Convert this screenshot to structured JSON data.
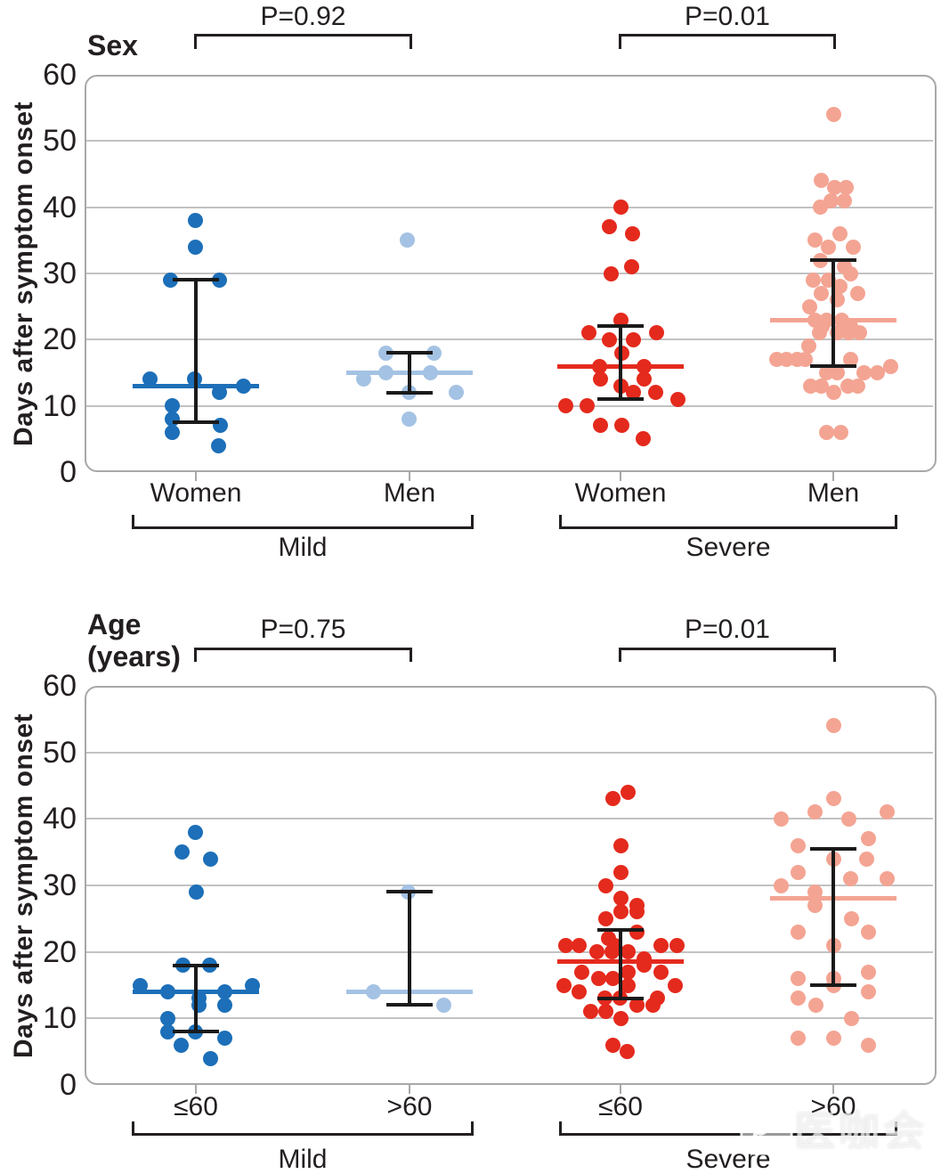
{
  "colors": {
    "dark_blue": "#1c6fb8",
    "light_blue": "#a4c2e3",
    "red": "#e42a1d",
    "salmon": "#f4a493",
    "grid": "#c2c2c2",
    "border": "#a8a8a8",
    "ink": "#231f20"
  },
  "watermark": {
    "brand": "医咖会"
  },
  "chart_data": {
    "type": "scatter",
    "subtype": "beeswarm-with-median-iqr",
    "y_axis": {
      "label": "Days after symptom onset",
      "min": 0,
      "max": 60,
      "ticks": [
        60,
        50,
        40,
        30,
        20,
        10,
        0
      ],
      "grid": true
    },
    "panels": [
      {
        "title": "Sex",
        "comparisons": [
          {
            "label": "P=0.92",
            "from": 0,
            "to": 1
          },
          {
            "label": "P=0.01",
            "from": 2,
            "to": 3
          }
        ],
        "arms": [
          {
            "label": "Mild",
            "groups": [
              0,
              1
            ]
          },
          {
            "label": "Severe",
            "groups": [
              2,
              3
            ]
          }
        ],
        "groups": [
          {
            "label": "Women",
            "arm": "Mild",
            "color_key": "dark_blue",
            "median": 13,
            "iqr": [
              7.5,
              29
            ],
            "points": [
              [
                -1,
                38
              ],
              [
                -1,
                34
              ],
              [
                -29,
                29
              ],
              [
                26,
                29
              ],
              [
                -52,
                14
              ],
              [
                -2,
                14
              ],
              [
                53,
                13
              ],
              [
                26,
                12
              ],
              [
                -27,
                10
              ],
              [
                -27,
                8
              ],
              [
                -27,
                6
              ],
              [
                27,
                7
              ],
              [
                25,
                4
              ]
            ]
          },
          {
            "label": "Men",
            "arm": "Mild",
            "color_key": "light_blue",
            "median": 15,
            "iqr": [
              12,
              18
            ],
            "points": [
              [
                -3,
                35
              ],
              [
                -27,
                18
              ],
              [
                27,
                18
              ],
              [
                -52,
                14
              ],
              [
                -27,
                15
              ],
              [
                23,
                15
              ],
              [
                -1,
                12
              ],
              [
                52,
                12
              ],
              [
                -1,
                8
              ]
            ]
          },
          {
            "label": "Women",
            "arm": "Severe",
            "color_key": "red",
            "median": 16,
            "iqr": [
              11,
              22
            ],
            "points": [
              [
                0,
                40
              ],
              [
                -13,
                37
              ],
              [
                13,
                36
              ],
              [
                -11,
                30
              ],
              [
                12,
                31
              ],
              [
                0,
                23
              ],
              [
                -36,
                21
              ],
              [
                40,
                21
              ],
              [
                -13,
                20
              ],
              [
                14,
                20
              ],
              [
                1,
                18
              ],
              [
                -24,
                16
              ],
              [
                26,
                16
              ],
              [
                -23,
                14
              ],
              [
                26,
                14
              ],
              [
                0,
                13
              ],
              [
                14,
                12
              ],
              [
                39,
                12
              ],
              [
                64,
                11
              ],
              [
                -62,
                10
              ],
              [
                -38,
                10
              ],
              [
                -23,
                7
              ],
              [
                1,
                7
              ],
              [
                25,
                5
              ]
            ]
          },
          {
            "label": "Men",
            "arm": "Severe",
            "color_key": "salmon",
            "median": 23,
            "iqr": [
              16,
              32
            ],
            "points": [
              [
                0,
                54
              ],
              [
                -14,
                44
              ],
              [
                1,
                43
              ],
              [
                14,
                43
              ],
              [
                -3,
                41
              ],
              [
                12,
                41
              ],
              [
                -15,
                40
              ],
              [
                7,
                36
              ],
              [
                -21,
                35
              ],
              [
                -6,
                34
              ],
              [
                22,
                34
              ],
              [
                -15,
                32
              ],
              [
                12,
                31
              ],
              [
                19,
                30
              ],
              [
                -23,
                29
              ],
              [
                -6,
                29
              ],
              [
                7,
                28
              ],
              [
                27,
                27
              ],
              [
                -14,
                27
              ],
              [
                4,
                26
              ],
              [
                -27,
                25
              ],
              [
                -21,
                23
              ],
              [
                -8,
                23
              ],
              [
                9,
                23
              ],
              [
                -13,
                22
              ],
              [
                19,
                22
              ],
              [
                -16,
                21
              ],
              [
                4,
                21
              ],
              [
                17,
                21
              ],
              [
                29,
                21
              ],
              [
                -28,
                19
              ],
              [
                -64,
                17
              ],
              [
                -53,
                17
              ],
              [
                -41,
                17
              ],
              [
                -32,
                17
              ],
              [
                19,
                17
              ],
              [
                64,
                16
              ],
              [
                -8,
                15
              ],
              [
                4,
                15
              ],
              [
                34,
                15
              ],
              [
                49,
                15
              ],
              [
                -26,
                13
              ],
              [
                -14,
                13
              ],
              [
                16,
                13
              ],
              [
                27,
                13
              ],
              [
                0,
                12
              ],
              [
                -8,
                6
              ],
              [
                8,
                6
              ]
            ]
          }
        ]
      },
      {
        "title": "Age (years)",
        "comparisons": [
          {
            "label": "P=0.75",
            "from": 0,
            "to": 1
          },
          {
            "label": "P=0.01",
            "from": 2,
            "to": 3
          }
        ],
        "arms": [
          {
            "label": "Mild",
            "groups": [
              0,
              1
            ]
          },
          {
            "label": "Severe",
            "groups": [
              2,
              3
            ]
          }
        ],
        "groups": [
          {
            "label": "≤60",
            "arm": "Mild",
            "color_key": "dark_blue",
            "median": 14,
            "iqr": [
              8,
              18
            ],
            "points": [
              [
                -1,
                38
              ],
              [
                -16,
                35
              ],
              [
                16,
                34
              ],
              [
                0,
                29
              ],
              [
                -15,
                18
              ],
              [
                15,
                18
              ],
              [
                -63,
                15
              ],
              [
                63,
                15
              ],
              [
                -32,
                14
              ],
              [
                32,
                14
              ],
              [
                3,
                13
              ],
              [
                3,
                12
              ],
              [
                32,
                12
              ],
              [
                -32,
                10
              ],
              [
                -32,
                8
              ],
              [
                -1,
                8
              ],
              [
                32,
                7
              ],
              [
                -17,
                6
              ],
              [
                16,
                4
              ]
            ]
          },
          {
            "label": ">60",
            "arm": "Mild",
            "color_key": "light_blue",
            "median": 14,
            "iqr": [
              12,
              29
            ],
            "points": [
              [
                -2,
                29
              ],
              [
                -41,
                14
              ],
              [
                38,
                12
              ]
            ]
          },
          {
            "label": "≤60",
            "arm": "Severe",
            "color_key": "red",
            "median": 18.5,
            "iqr": [
              13,
              23.3
            ],
            "points": [
              [
                -9,
                43
              ],
              [
                8,
                44
              ],
              [
                0,
                36
              ],
              [
                0,
                32
              ],
              [
                -17,
                30
              ],
              [
                0,
                28
              ],
              [
                18,
                27
              ],
              [
                0,
                26
              ],
              [
                18,
                26
              ],
              [
                -17,
                25
              ],
              [
                18,
                23
              ],
              [
                -14,
                22
              ],
              [
                -62,
                21
              ],
              [
                -47,
                21
              ],
              [
                -7,
                21
              ],
              [
                45,
                21
              ],
              [
                63,
                21
              ],
              [
                -27,
                20
              ],
              [
                -10,
                20
              ],
              [
                8,
                20
              ],
              [
                26,
                19
              ],
              [
                26,
                18
              ],
              [
                -44,
                17
              ],
              [
                8,
                17
              ],
              [
                45,
                17
              ],
              [
                -25,
                16
              ],
              [
                -9,
                16
              ],
              [
                -64,
                15
              ],
              [
                8,
                15
              ],
              [
                61,
                15
              ],
              [
                -47,
                14
              ],
              [
                -18,
                13
              ],
              [
                -1,
                13
              ],
              [
                41,
                13
              ],
              [
                18,
                12
              ],
              [
                36,
                12
              ],
              [
                -34,
                11
              ],
              [
                -17,
                11
              ],
              [
                0,
                10
              ],
              [
                -9,
                6
              ],
              [
                7,
                5
              ]
            ]
          },
          {
            "label": ">60",
            "arm": "Severe",
            "color_key": "salmon",
            "median": 28,
            "iqr": [
              15,
              35.5
            ],
            "points": [
              [
                0,
                54
              ],
              [
                0,
                43
              ],
              [
                -21,
                41
              ],
              [
                60,
                41
              ],
              [
                -59,
                40
              ],
              [
                17,
                40
              ],
              [
                39,
                37
              ],
              [
                -40,
                36
              ],
              [
                0,
                34
              ],
              [
                37,
                34
              ],
              [
                -40,
                32
              ],
              [
                19,
                31
              ],
              [
                60,
                31
              ],
              [
                -59,
                30
              ],
              [
                -21,
                29
              ],
              [
                -21,
                27
              ],
              [
                20,
                25
              ],
              [
                -40,
                23
              ],
              [
                39,
                23
              ],
              [
                0,
                21
              ],
              [
                39,
                17
              ],
              [
                -40,
                16
              ],
              [
                0,
                16
              ],
              [
                0,
                15
              ],
              [
                39,
                14
              ],
              [
                -40,
                13
              ],
              [
                -20,
                12
              ],
              [
                20,
                10
              ],
              [
                -40,
                7
              ],
              [
                0,
                7
              ],
              [
                39,
                6
              ]
            ]
          }
        ]
      }
    ]
  }
}
